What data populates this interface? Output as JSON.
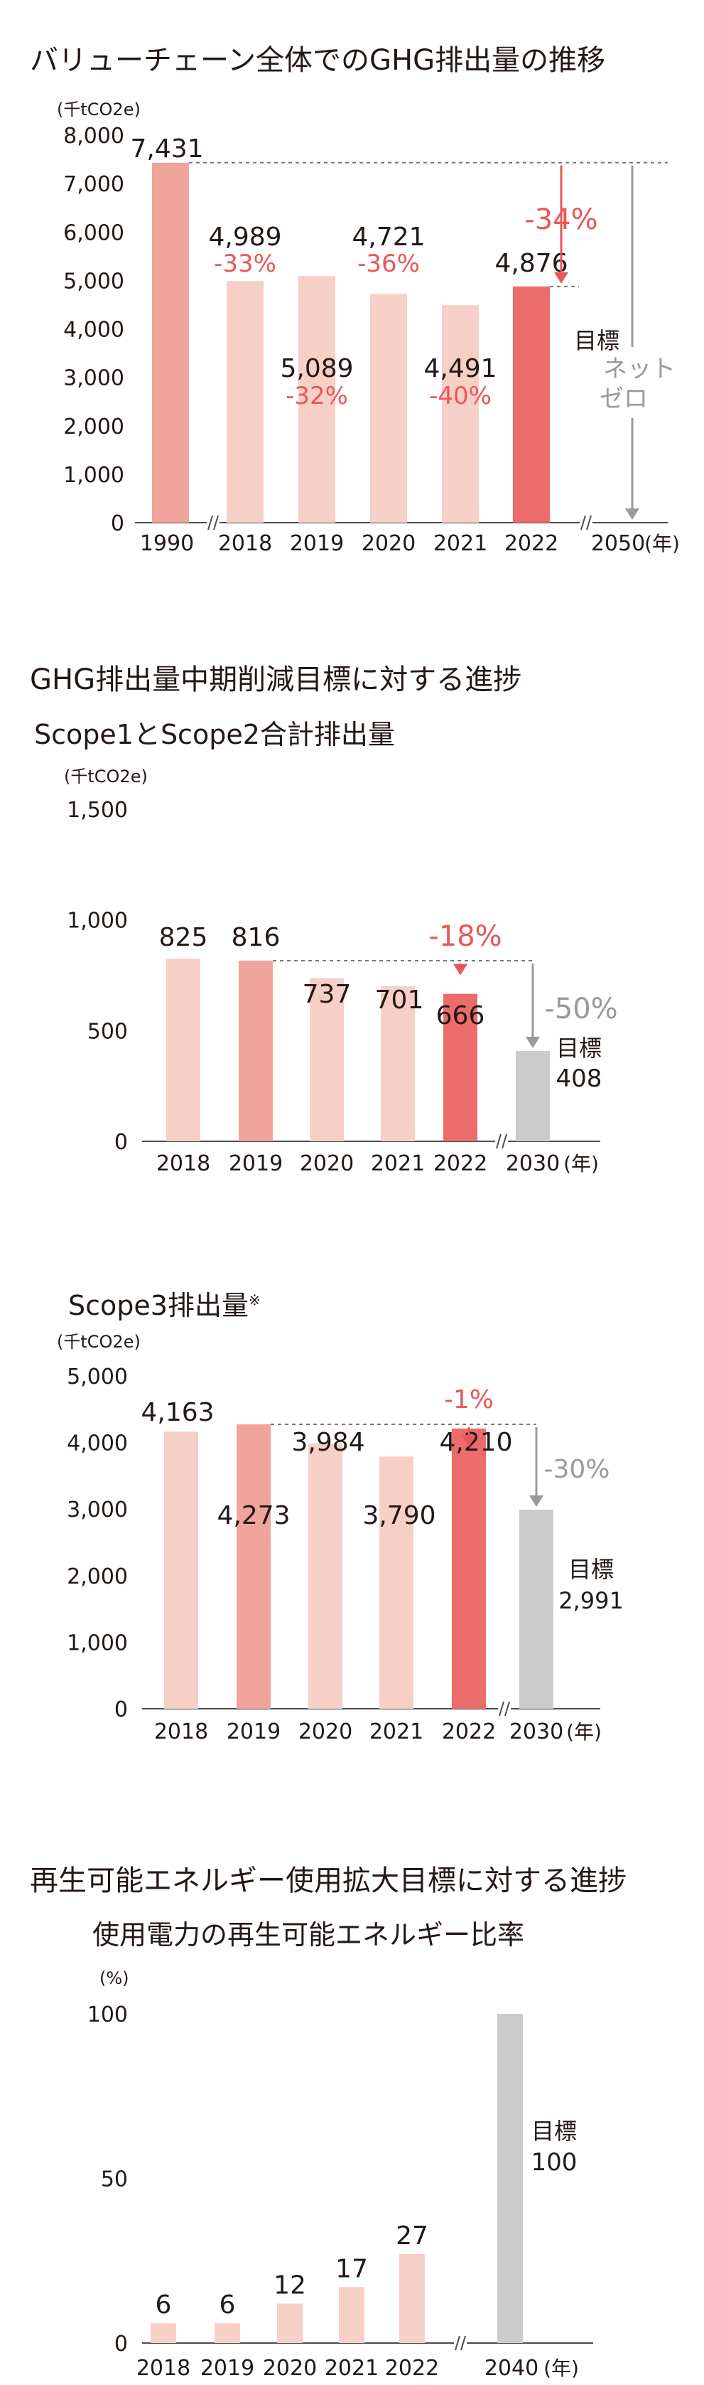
{
  "colors": {
    "bar_light": "#f6cfc6",
    "bar_mid": "#f0a49b",
    "bar_dark": "#ec6c6c",
    "bar_gray": "#cbcbcb",
    "accent_red": "#e9575b",
    "gray_text": "#9a9a9a",
    "axis": "#4d4d4d"
  },
  "sections": {
    "ghg_trend": {
      "title": "バリューチェーン全体でのGHG排出量の推移"
    },
    "mid_term": {
      "title": "GHG排出量中期削減目標に対する進捗"
    },
    "renewable": {
      "title": "再生可能エネルギー使用拡大目標に対する進捗"
    }
  },
  "chart_data": [
    {
      "id": "value_chain",
      "type": "bar",
      "unit_label": "(千tCO2e)",
      "yticks": [
        0,
        1000,
        2000,
        3000,
        4000,
        5000,
        6000,
        7000,
        8000
      ],
      "ytick_labels": [
        "0",
        "1,000",
        "2,000",
        "3,000",
        "4,000",
        "5,000",
        "6,000",
        "7,000",
        "8,000"
      ],
      "ylim": [
        0,
        8000
      ],
      "categories": [
        "1990",
        "2018",
        "2019",
        "2020",
        "2021",
        "2022",
        "2050"
      ],
      "axis_suffix": "(年)",
      "values": [
        7431,
        4989,
        5089,
        4721,
        4491,
        4876,
        null
      ],
      "value_labels": [
        "7,431",
        "4,989",
        "5,089",
        "4,721",
        "4,491",
        "4,876",
        ""
      ],
      "change_labels": [
        "",
        "-33%",
        "-32%",
        "-36%",
        "-40%",
        "",
        ""
      ],
      "bar_colors": [
        "mid",
        "light",
        "light",
        "light",
        "light",
        "dark",
        ""
      ],
      "reduction_label": "-34%",
      "target": {
        "line1": "目標",
        "line2": "ネット",
        "line3": "ゼロ"
      }
    },
    {
      "id": "scope12",
      "type": "bar",
      "title": "Scope1とScope2合計排出量",
      "unit_label": "(千tCO2e)",
      "yticks": [
        0,
        500,
        1000,
        1500
      ],
      "ytick_labels": [
        "0",
        "500",
        "1,000",
        "1,500"
      ],
      "ylim": [
        0,
        1500
      ],
      "categories": [
        "2018",
        "2019",
        "2020",
        "2021",
        "2022",
        "2030"
      ],
      "axis_suffix": "(年)",
      "values": [
        825,
        816,
        737,
        701,
        666,
        408
      ],
      "value_labels": [
        "825",
        "816",
        "737",
        "701",
        "666",
        ""
      ],
      "bar_colors": [
        "light",
        "mid",
        "light",
        "light",
        "dark",
        "gray"
      ],
      "reduction_label": "-18%",
      "target_reduction_label": "-50%",
      "target": {
        "line1": "目標",
        "line2": "408"
      }
    },
    {
      "id": "scope3",
      "type": "bar",
      "title": "Scope3排出量",
      "title_note": "※",
      "unit_label": "(千tCO2e)",
      "yticks": [
        0,
        1000,
        2000,
        3000,
        4000,
        5000
      ],
      "ytick_labels": [
        "0",
        "1,000",
        "2,000",
        "3,000",
        "4,000",
        "5,000"
      ],
      "ylim": [
        0,
        5000
      ],
      "categories": [
        "2018",
        "2019",
        "2020",
        "2021",
        "2022",
        "2030"
      ],
      "axis_suffix": "(年)",
      "values": [
        4163,
        4273,
        3984,
        3790,
        4210,
        2991
      ],
      "value_labels": [
        "4,163",
        "4,273",
        "3,984",
        "3,790",
        "4,210",
        ""
      ],
      "bar_colors": [
        "light",
        "mid",
        "light",
        "light",
        "dark",
        "gray"
      ],
      "reduction_label": "-1%",
      "target_reduction_label": "-30%",
      "target": {
        "line1": "目標",
        "line2": "2,991"
      }
    },
    {
      "id": "renewable",
      "type": "bar",
      "title": "使用電力の再生可能エネルギー比率",
      "unit_label": "(%)",
      "yticks": [
        0,
        50,
        100
      ],
      "ytick_labels": [
        "0",
        "50",
        "100"
      ],
      "ylim": [
        0,
        100
      ],
      "categories": [
        "2018",
        "2019",
        "2020",
        "2021",
        "2022",
        "2040"
      ],
      "axis_suffix": "(年)",
      "values": [
        6,
        6,
        12,
        17,
        27,
        100
      ],
      "value_labels": [
        "6",
        "6",
        "12",
        "17",
        "27",
        ""
      ],
      "bar_colors": [
        "light",
        "light",
        "light",
        "light",
        "light",
        "gray"
      ],
      "target": {
        "line1": "目標",
        "line2": "100"
      }
    }
  ]
}
